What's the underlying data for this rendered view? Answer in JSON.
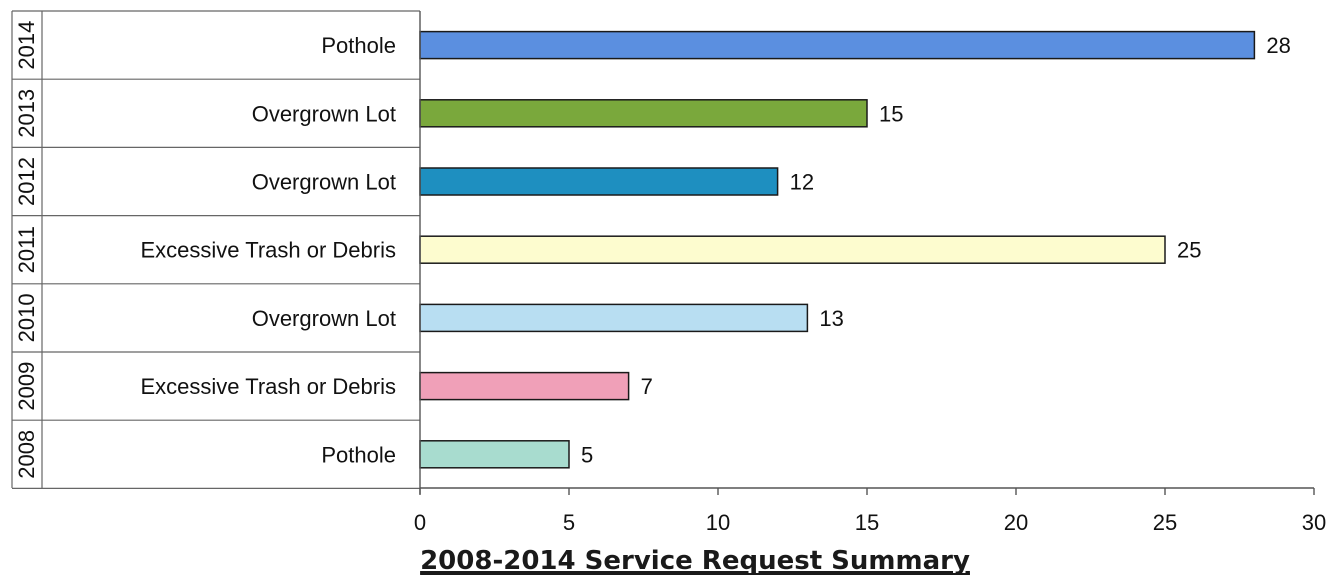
{
  "chart_data": {
    "type": "bar",
    "orientation": "horizontal",
    "title": "2008-2014 Service Request Summary",
    "xlabel": "",
    "ylabel": "",
    "xlim": [
      0,
      30
    ],
    "xticks": [
      "0",
      "5",
      "10",
      "15",
      "20",
      "25",
      "30"
    ],
    "grid": false,
    "legend": "none",
    "rows": [
      {
        "year": "2014",
        "category": "Pothole",
        "value": 28,
        "color": "#5b8fe0"
      },
      {
        "year": "2013",
        "category": "Overgrown Lot",
        "value": 15,
        "color": "#7aa83c"
      },
      {
        "year": "2012",
        "category": "Overgrown Lot",
        "value": 12,
        "color": "#1e8fc0"
      },
      {
        "year": "2011",
        "category": "Excessive Trash or Debris",
        "value": 25,
        "color": "#fdfccf"
      },
      {
        "year": "2010",
        "category": "Overgrown Lot",
        "value": 13,
        "color": "#b8def2"
      },
      {
        "year": "2009",
        "category": "Excessive Trash or Debris",
        "value": 7,
        "color": "#f0a0b8"
      },
      {
        "year": "2008",
        "category": "Pothole",
        "value": 5,
        "color": "#a8dccf"
      }
    ]
  }
}
